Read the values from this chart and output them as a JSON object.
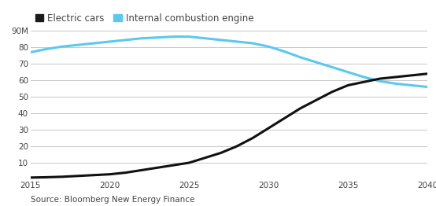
{
  "source_text": "Source: Bloomberg New Energy Finance",
  "legend_labels": [
    "Electric cars",
    "Internal combustion engine"
  ],
  "legend_colors": [
    "#1a1a1a",
    "#5bc8f0"
  ],
  "ylim": [
    0,
    90
  ],
  "yticks": [
    0,
    10,
    20,
    30,
    40,
    50,
    60,
    70,
    80,
    90
  ],
  "ytick_labels": [
    "",
    "10",
    "20",
    "30",
    "40",
    "50",
    "60",
    "70",
    "80",
    "90M"
  ],
  "xlim": [
    2015,
    2040
  ],
  "xticks": [
    2015,
    2020,
    2025,
    2030,
    2035,
    2040
  ],
  "electric_cars_x": [
    2015,
    2016,
    2017,
    2018,
    2019,
    2020,
    2021,
    2022,
    2023,
    2024,
    2025,
    2026,
    2027,
    2028,
    2029,
    2030,
    2031,
    2032,
    2033,
    2034,
    2035,
    2036,
    2037,
    2038,
    2039,
    2040
  ],
  "electric_cars_y": [
    1.0,
    1.2,
    1.5,
    2.0,
    2.5,
    3.0,
    4.0,
    5.5,
    7.0,
    8.5,
    10.0,
    13.0,
    16.0,
    20.0,
    25.0,
    31.0,
    37.0,
    43.0,
    48.0,
    53.0,
    57.0,
    59.0,
    61.0,
    62.0,
    63.0,
    64.0
  ],
  "ice_cars_x": [
    2015,
    2016,
    2017,
    2018,
    2019,
    2020,
    2021,
    2022,
    2023,
    2024,
    2025,
    2026,
    2027,
    2028,
    2029,
    2030,
    2031,
    2032,
    2033,
    2034,
    2035,
    2036,
    2037,
    2038,
    2039,
    2040
  ],
  "ice_cars_y": [
    77.0,
    79.0,
    80.5,
    81.5,
    82.5,
    83.5,
    84.5,
    85.5,
    86.0,
    86.5,
    86.5,
    85.5,
    84.5,
    83.5,
    82.5,
    80.5,
    77.5,
    74.0,
    71.0,
    68.0,
    65.0,
    62.0,
    59.5,
    58.0,
    57.0,
    56.0
  ],
  "electric_color": "#111111",
  "ice_color": "#5bc8f0",
  "line_width": 2.2,
  "background_color": "#ffffff",
  "grid_color": "#c8c8c8",
  "font_color": "#444444",
  "source_fontsize": 7.5,
  "tick_fontsize": 7.5,
  "legend_fontsize": 8.5
}
